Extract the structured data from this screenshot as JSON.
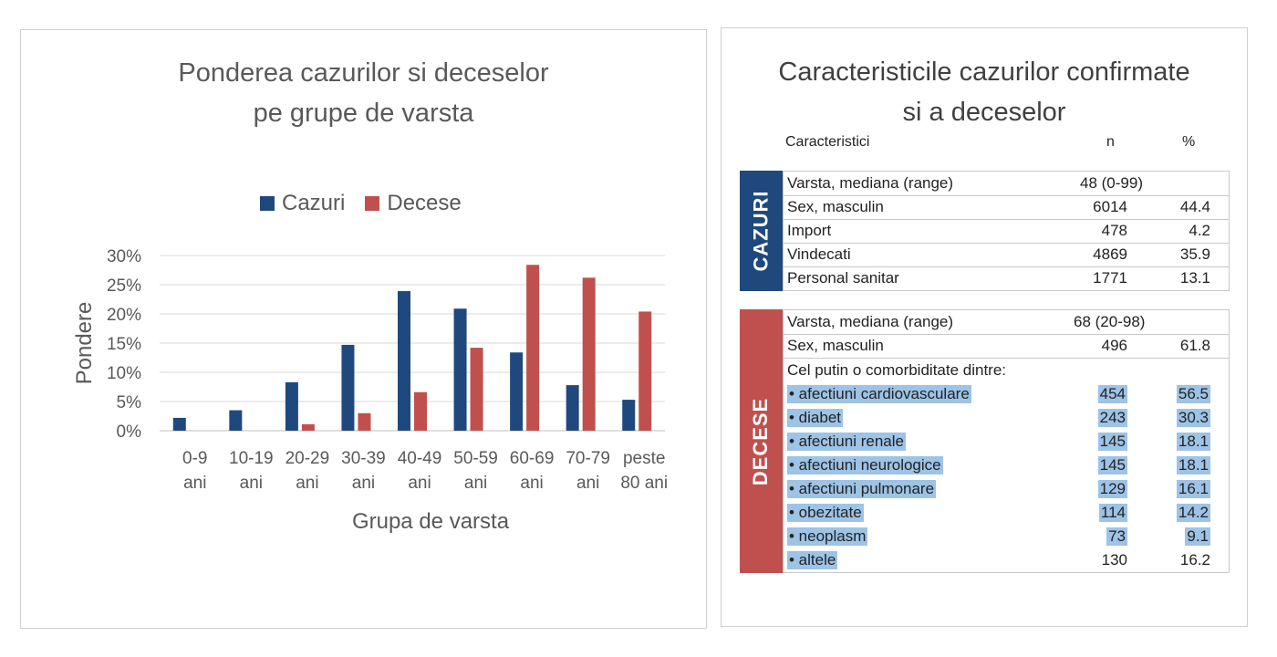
{
  "chart_panel": {
    "title_line1": "Ponderea cazurilor si deceselor",
    "title_line2": "pe grupe de varsta"
  },
  "chart_data": {
    "type": "bar",
    "title": "Ponderea cazurilor si deceselor pe grupe de varsta",
    "xlabel": "Grupa de varsta",
    "ylabel": "Pondere",
    "categories": [
      [
        "0-9",
        "ani"
      ],
      [
        "10-19",
        "ani"
      ],
      [
        "20-29",
        "ani"
      ],
      [
        "30-39",
        "ani"
      ],
      [
        "40-49",
        "ani"
      ],
      [
        "50-59",
        "ani"
      ],
      [
        "60-69",
        "ani"
      ],
      [
        "70-79",
        "ani"
      ],
      [
        "peste",
        "80 ani"
      ]
    ],
    "series": [
      {
        "name": "Cazuri",
        "color": "#1f497d",
        "values": [
          2.2,
          3.5,
          8.3,
          14.7,
          23.9,
          20.9,
          13.4,
          7.8,
          5.3
        ]
      },
      {
        "name": "Decese",
        "color": "#c0504d",
        "values": [
          0,
          0,
          1.1,
          3.0,
          6.6,
          14.2,
          28.4,
          26.2,
          20.4
        ]
      }
    ],
    "ylim": [
      0,
      30
    ],
    "yticks": [
      "0%",
      "5%",
      "10%",
      "15%",
      "20%",
      "25%",
      "30%"
    ],
    "ytick_values": [
      0,
      5,
      10,
      15,
      20,
      25,
      30
    ],
    "grid": true,
    "legend_position": "top"
  },
  "table_panel": {
    "title_line1": "Caracteristicile cazurilor confirmate",
    "title_line2": "si a deceselor",
    "header": {
      "characteristics": "Caracteristici",
      "n": "n",
      "pct": "%"
    },
    "cazuri": {
      "label": "CAZURI",
      "color": "#1f497d",
      "median_row": {
        "label": "Varsta, mediana (range)",
        "value": "48 (0-99)"
      },
      "rows": [
        {
          "label": "Sex, masculin",
          "n": "6014",
          "pct": "44.4"
        },
        {
          "label": "Import",
          "n": "478",
          "pct": "4.2"
        },
        {
          "label": "Vindecati",
          "n": "4869",
          "pct": "35.9"
        },
        {
          "label": "Personal sanitar",
          "n": "1771",
          "pct": "13.1"
        }
      ]
    },
    "decese": {
      "label": "DECESE",
      "color": "#c0504d",
      "median_row": {
        "label": "Varsta, mediana (range)",
        "value": "68 (20-98)"
      },
      "sex_row": {
        "label": "Sex, masculin",
        "n": "496",
        "pct": "61.8"
      },
      "comorb_heading": "Cel putin o comorbiditate dintre:",
      "comorbidities": [
        {
          "label": "• afectiuni cardiovasculare",
          "n": "454",
          "pct": "56.5"
        },
        {
          "label": "• diabet",
          "n": "243",
          "pct": "30.3"
        },
        {
          "label": "• afectiuni renale",
          "n": "145",
          "pct": "18.1"
        },
        {
          "label": "• afectiuni neurologice",
          "n": "145",
          "pct": "18.1"
        },
        {
          "label": "• afectiuni pulmonare",
          "n": "129",
          "pct": "16.1"
        },
        {
          "label": "• obezitate",
          "n": "114",
          "pct": "14.2"
        },
        {
          "label": "• neoplasm",
          "n": "73",
          "pct": "9.1"
        },
        {
          "label": "• altele",
          "n": "130",
          "pct": "16.2"
        }
      ]
    }
  }
}
